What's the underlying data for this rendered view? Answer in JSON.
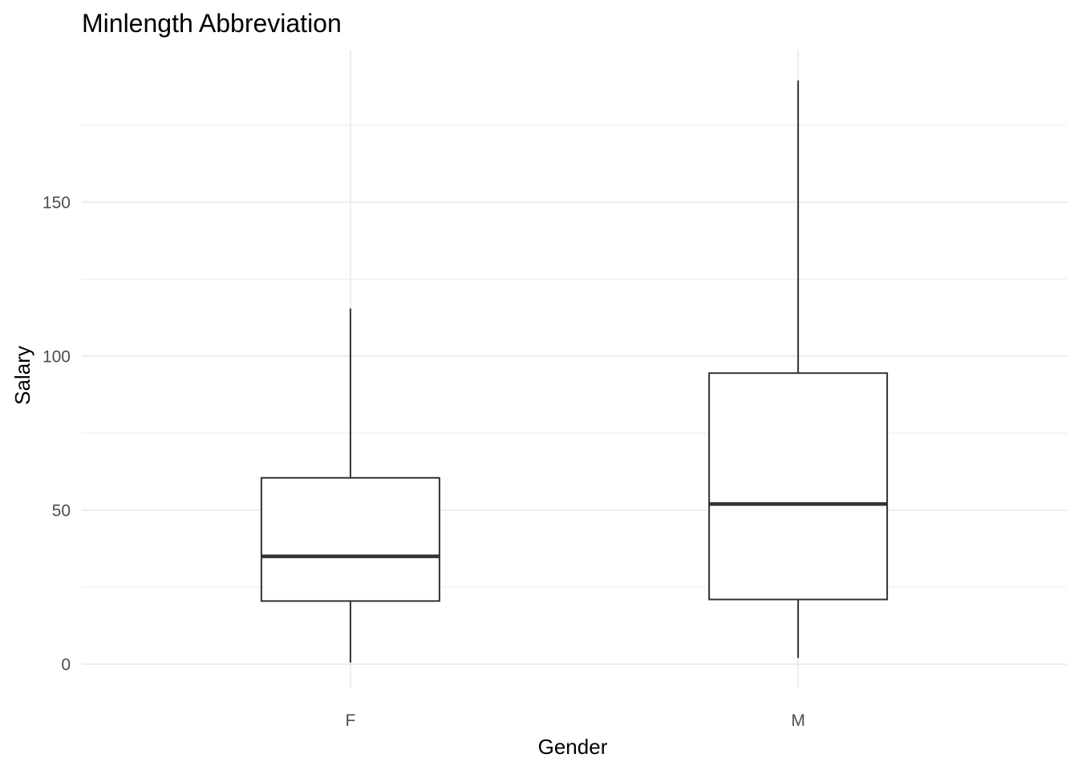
{
  "chart_data": {
    "type": "boxplot",
    "title": "Minlength Abbreviation",
    "xlabel": "Gender",
    "ylabel": "Salary",
    "categories": [
      "F",
      "M"
    ],
    "boxes": [
      {
        "category": "F",
        "min": 0.5,
        "q1": 20.5,
        "median": 35,
        "q3": 60.5,
        "max": 115.5
      },
      {
        "category": "M",
        "min": 2,
        "q1": 21,
        "median": 52,
        "q3": 94.5,
        "max": 189.5
      }
    ],
    "yticks": [
      0,
      50,
      100,
      150
    ],
    "ytick_labels": [
      "0",
      "50",
      "100",
      "150"
    ],
    "ylim": [
      -7.8,
      199.5
    ],
    "grid": true,
    "colors": {
      "box_line": "#333333",
      "box_fill": "#ffffff",
      "grid": "#ebebeb",
      "tick_text": "#4d4d4d"
    }
  }
}
